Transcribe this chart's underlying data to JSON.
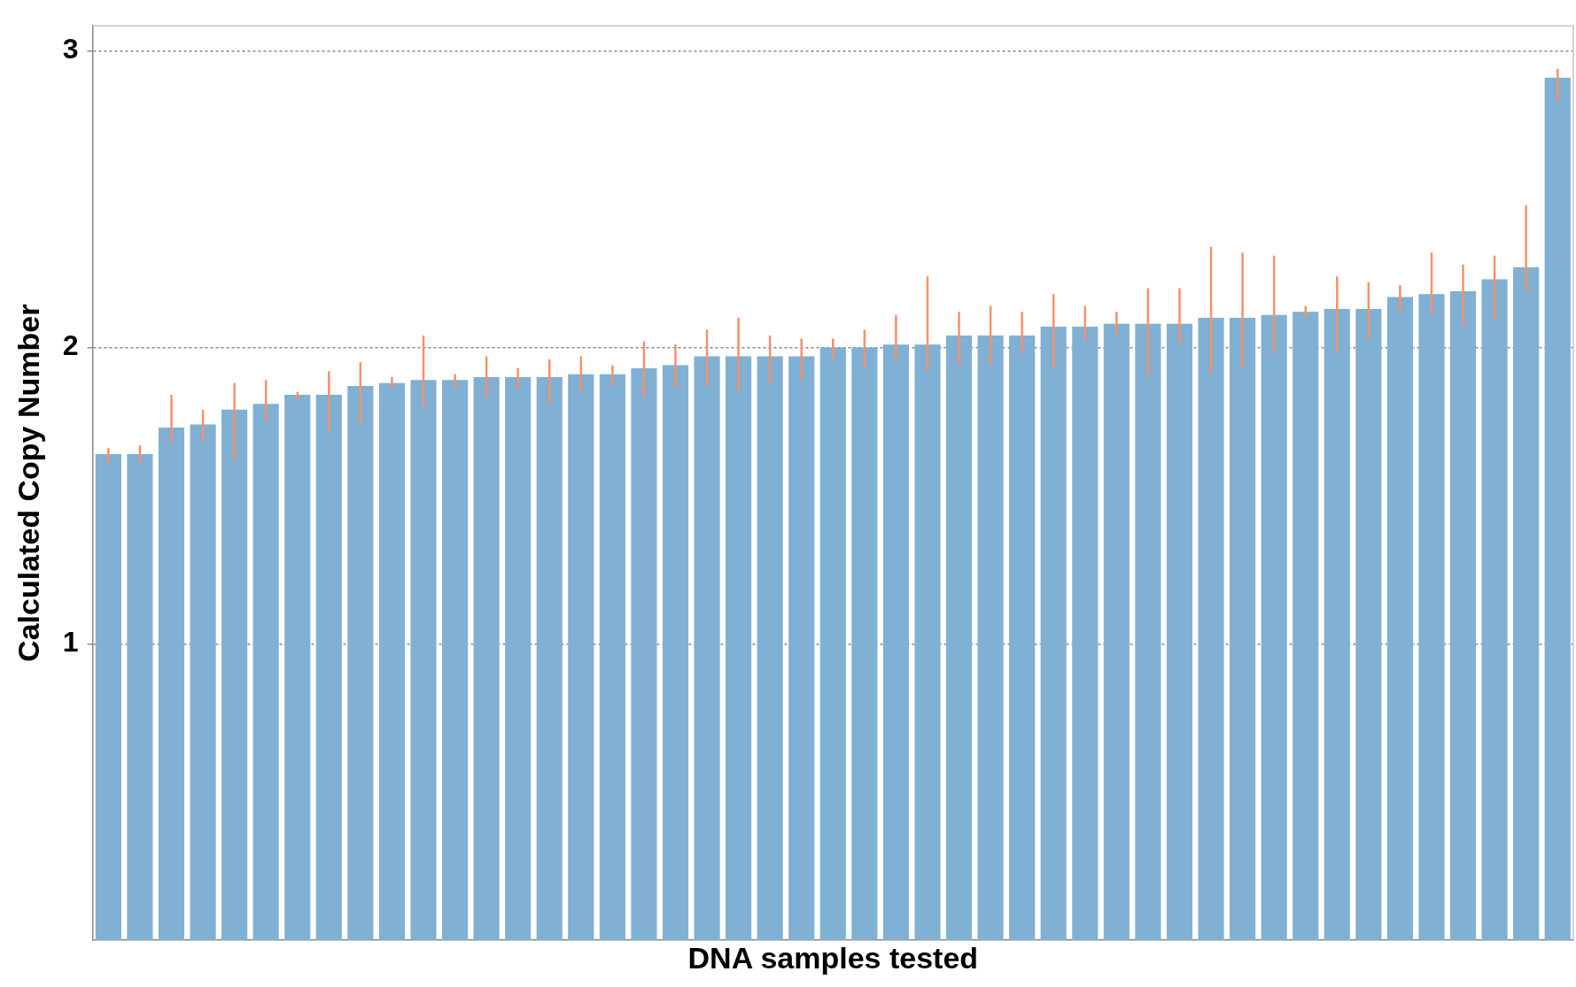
{
  "chart_data": {
    "type": "bar",
    "xlabel": "DNA samples tested",
    "ylabel": "Calculated Copy Number",
    "categories": [
      null,
      null,
      null,
      null,
      null,
      null,
      null,
      null,
      null,
      null,
      null,
      null,
      null,
      null,
      null,
      null,
      null,
      null,
      null,
      null,
      null,
      null,
      null,
      null,
      null,
      null,
      null,
      null,
      null,
      null,
      null,
      null,
      null,
      null,
      null,
      null,
      null,
      null,
      null,
      null,
      null,
      null,
      null,
      null,
      null,
      null,
      null
    ],
    "values": [
      1.64,
      1.64,
      1.73,
      1.74,
      1.79,
      1.81,
      1.84,
      1.84,
      1.87,
      1.88,
      1.89,
      1.89,
      1.9,
      1.9,
      1.9,
      1.91,
      1.91,
      1.93,
      1.94,
      1.97,
      1.97,
      1.97,
      1.97,
      2.0,
      2.0,
      2.01,
      2.01,
      2.04,
      2.04,
      2.04,
      2.07,
      2.07,
      2.08,
      2.08,
      2.08,
      2.1,
      2.1,
      2.11,
      2.12,
      2.13,
      2.13,
      2.17,
      2.18,
      2.19,
      2.23,
      2.27,
      2.91
    ],
    "errors": [
      [
        1.61,
        1.66
      ],
      [
        1.61,
        1.67
      ],
      [
        1.68,
        1.84
      ],
      [
        1.68,
        1.79
      ],
      [
        1.62,
        1.88
      ],
      [
        1.75,
        1.89
      ],
      [
        1.82,
        1.85
      ],
      [
        1.72,
        1.92
      ],
      [
        1.74,
        1.95
      ],
      [
        1.86,
        1.9
      ],
      [
        1.8,
        2.04
      ],
      [
        1.86,
        1.91
      ],
      [
        1.83,
        1.97
      ],
      [
        1.86,
        1.93
      ],
      [
        1.81,
        1.96
      ],
      [
        1.85,
        1.97
      ],
      [
        1.87,
        1.94
      ],
      [
        1.83,
        2.02
      ],
      [
        1.86,
        2.01
      ],
      [
        1.87,
        2.06
      ],
      [
        1.85,
        2.1
      ],
      [
        1.88,
        2.04
      ],
      [
        1.89,
        2.03
      ],
      [
        1.96,
        2.03
      ],
      [
        1.93,
        2.06
      ],
      [
        1.95,
        2.11
      ],
      [
        1.92,
        2.24
      ],
      [
        1.94,
        2.12
      ],
      [
        1.94,
        2.14
      ],
      [
        1.98,
        2.12
      ],
      [
        1.93,
        2.18
      ],
      [
        2.02,
        2.14
      ],
      [
        2.04,
        2.12
      ],
      [
        1.9,
        2.2
      ],
      [
        2.01,
        2.2
      ],
      [
        1.91,
        2.34
      ],
      [
        1.93,
        2.32
      ],
      [
        1.98,
        2.31
      ],
      [
        2.1,
        2.14
      ],
      [
        1.98,
        2.24
      ],
      [
        2.03,
        2.22
      ],
      [
        2.12,
        2.21
      ],
      [
        2.11,
        2.32
      ],
      [
        2.07,
        2.28
      ],
      [
        2.09,
        2.31
      ],
      [
        2.19,
        2.48
      ],
      [
        2.83,
        2.94
      ]
    ],
    "color": "#80b0d3",
    "ylim": [
      0,
      3.085
    ],
    "yticks": [
      1,
      2,
      3
    ],
    "grid": "y",
    "tick_labels": "y"
  }
}
